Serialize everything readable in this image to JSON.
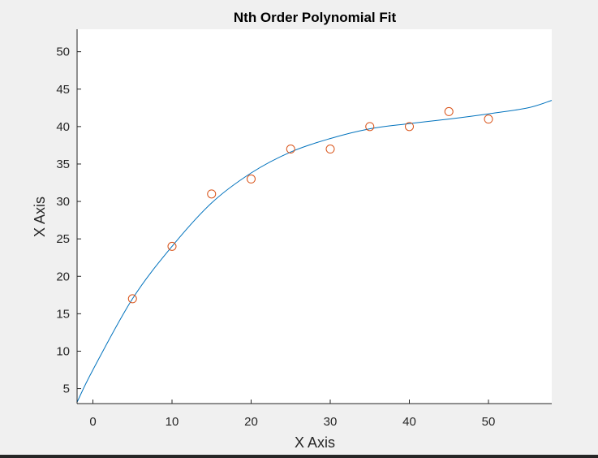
{
  "chart_data": {
    "type": "scatter",
    "title": "Nth Order Polynomial Fit",
    "xlabel": "X Axis",
    "ylabel": "X Axis",
    "xlim": [
      -2,
      58
    ],
    "ylim": [
      3,
      53
    ],
    "xticks": [
      0,
      10,
      20,
      30,
      40,
      50
    ],
    "yticks": [
      5,
      10,
      15,
      20,
      25,
      30,
      35,
      40,
      45,
      50
    ],
    "grid": false,
    "series": [
      {
        "kind": "markers",
        "marker": "open-circle",
        "color": "#d95319",
        "x": [
          5,
          10,
          15,
          20,
          25,
          30,
          35,
          40,
          45,
          50
        ],
        "y": [
          17,
          24,
          31,
          33,
          37,
          37,
          40,
          40,
          42,
          41
        ]
      },
      {
        "kind": "line",
        "color": "#0072bd",
        "x": [
          -2,
          0,
          5,
          10,
          15,
          20,
          25,
          30,
          35,
          40,
          45,
          50,
          55,
          58
        ],
        "y": [
          3.2,
          7.5,
          17,
          24,
          29.8,
          33.8,
          36.6,
          38.4,
          39.7,
          40.4,
          41,
          41.7,
          42.5,
          43.5
        ]
      }
    ]
  }
}
